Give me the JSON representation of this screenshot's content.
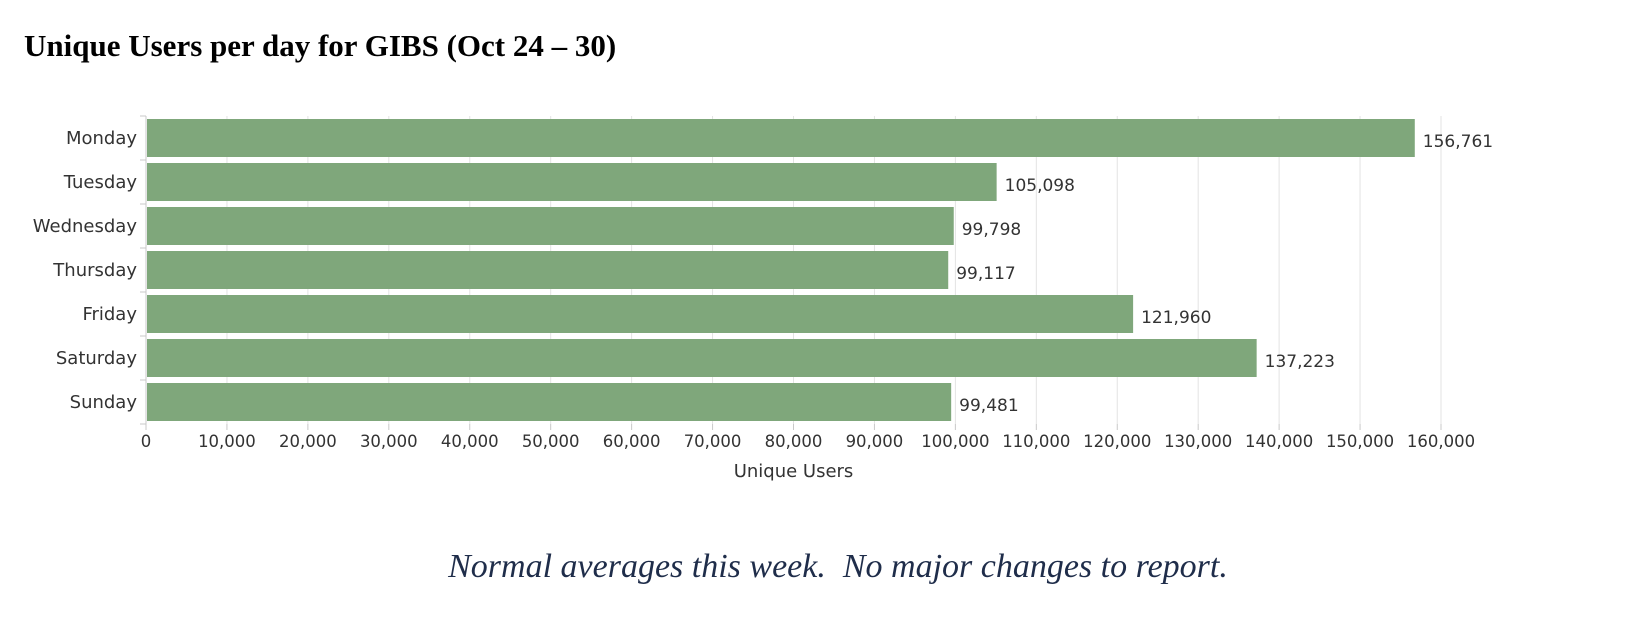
{
  "page": {
    "title": "Unique Users per day for GIBS (Oct 24 – 30)",
    "footnote": "Normal averages this week.  No major changes to report."
  },
  "chart_data": {
    "type": "bar",
    "orientation": "horizontal",
    "categories": [
      "Monday",
      "Tuesday",
      "Wednesday",
      "Thursday",
      "Friday",
      "Saturday",
      "Sunday"
    ],
    "values": [
      156761,
      105098,
      99798,
      99117,
      121960,
      137223,
      99481
    ],
    "value_labels": [
      "156,761",
      "105,098",
      "99,798",
      "99,117",
      "121,960",
      "137,223",
      "99,481"
    ],
    "xlabel": "Unique Users",
    "ylabel": "",
    "xlim": [
      0,
      160000
    ],
    "x_ticks": [
      0,
      10000,
      20000,
      30000,
      40000,
      50000,
      60000,
      70000,
      80000,
      90000,
      100000,
      110000,
      120000,
      130000,
      140000,
      150000,
      160000
    ],
    "x_tick_labels": [
      "0",
      "10,000",
      "20,000",
      "30,000",
      "40,000",
      "50,000",
      "60,000",
      "70,000",
      "80,000",
      "90,000",
      "100,000",
      "110,000",
      "120,000",
      "130,000",
      "140,000",
      "150,000",
      "160,000"
    ],
    "grid": "vertical",
    "legend": "none",
    "bar_color": "#7fa77b",
    "grid_color": "#e3e3e3",
    "axis_color": "#c8c8c8",
    "text_color": "#333333"
  }
}
